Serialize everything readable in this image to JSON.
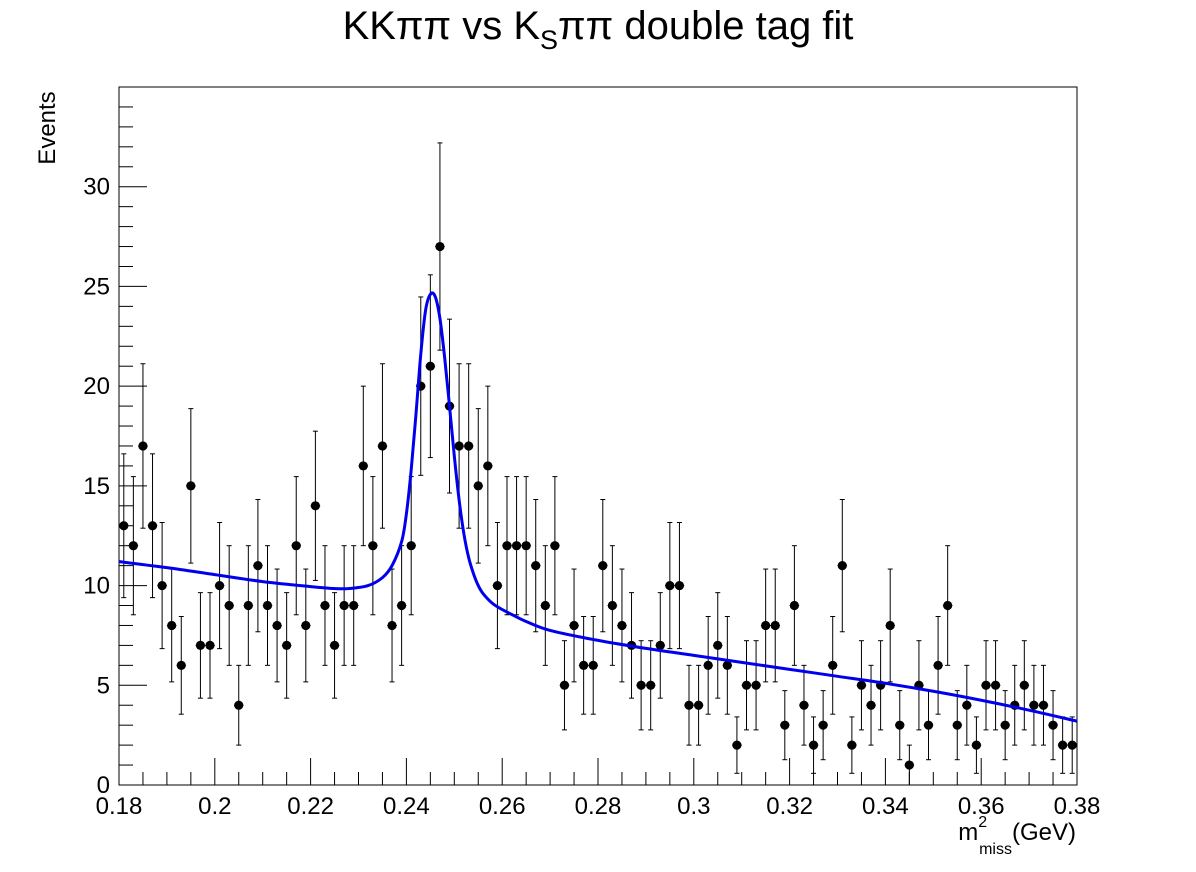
{
  "chart_data": {
    "type": "scatter",
    "title_main": "KKππ vs K",
    "title_sub": "S",
    "title_tail": "ππ double tag fit",
    "ylabel": "Events",
    "xlabel_m": "m",
    "xlabel_sup": "2",
    "xlabel_sub": "miss",
    "xlabel_unit": "(GeV)",
    "xlim": [
      0.18,
      0.38
    ],
    "ylim": [
      0,
      35
    ],
    "x_ticks": [
      "0.18",
      "0.2",
      "0.22",
      "0.24",
      "0.26",
      "0.28",
      "0.3",
      "0.32",
      "0.34",
      "0.36",
      "0.38"
    ],
    "y_ticks": [
      "0",
      "5",
      "10",
      "15",
      "20",
      "25",
      "30"
    ],
    "grid": false,
    "legend": "none",
    "bin_width": 0.002,
    "series": [
      {
        "style": "points-with-errorbars",
        "color": "#000000",
        "x": [
          0.181,
          0.183,
          0.185,
          0.187,
          0.189,
          0.191,
          0.193,
          0.195,
          0.197,
          0.199,
          0.201,
          0.203,
          0.205,
          0.207,
          0.209,
          0.211,
          0.213,
          0.215,
          0.217,
          0.219,
          0.221,
          0.223,
          0.225,
          0.227,
          0.229,
          0.231,
          0.233,
          0.235,
          0.237,
          0.239,
          0.241,
          0.243,
          0.245,
          0.247,
          0.249,
          0.251,
          0.253,
          0.255,
          0.257,
          0.259,
          0.261,
          0.263,
          0.265,
          0.267,
          0.269,
          0.271,
          0.273,
          0.275,
          0.277,
          0.279,
          0.281,
          0.283,
          0.285,
          0.287,
          0.289,
          0.291,
          0.293,
          0.295,
          0.297,
          0.299,
          0.301,
          0.303,
          0.305,
          0.307,
          0.309,
          0.311,
          0.313,
          0.315,
          0.317,
          0.319,
          0.321,
          0.323,
          0.325,
          0.327,
          0.329,
          0.331,
          0.333,
          0.335,
          0.337,
          0.339,
          0.341,
          0.343,
          0.345,
          0.347,
          0.349,
          0.351,
          0.353,
          0.355,
          0.357,
          0.359,
          0.361,
          0.363,
          0.365,
          0.367,
          0.369,
          0.371,
          0.373,
          0.375,
          0.377,
          0.379
        ],
        "y": [
          13,
          12,
          17,
          13,
          10,
          8,
          6,
          15,
          7,
          7,
          10,
          9,
          4,
          9,
          11,
          9,
          8,
          7,
          12,
          8,
          14,
          9,
          7,
          9,
          9,
          16,
          12,
          17,
          8,
          9,
          12,
          20,
          21,
          27,
          19,
          17,
          17,
          15,
          16,
          10,
          12,
          12,
          12,
          11,
          9,
          12,
          5,
          8,
          6,
          6,
          11,
          9,
          8,
          7,
          5,
          5,
          7,
          10,
          10,
          4,
          4,
          6,
          7,
          6,
          2,
          5,
          5,
          8,
          8,
          3,
          9,
          4,
          2,
          3,
          6,
          11,
          2,
          5,
          4,
          5,
          8,
          3,
          1,
          5,
          3,
          6,
          9,
          3,
          4,
          2,
          5,
          5,
          3,
          4,
          5,
          4,
          4,
          3,
          2,
          2
        ]
      },
      {
        "style": "line",
        "color": "#0000ee",
        "x": [
          0.18,
          0.19,
          0.2,
          0.21,
          0.22,
          0.225,
          0.228,
          0.232,
          0.235,
          0.237,
          0.239,
          0.24,
          0.241,
          0.242,
          0.243,
          0.244,
          0.245,
          0.246,
          0.247,
          0.248,
          0.249,
          0.25,
          0.251,
          0.252,
          0.253,
          0.254,
          0.255,
          0.256,
          0.258,
          0.26,
          0.262,
          0.265,
          0.27,
          0.28,
          0.29,
          0.3,
          0.31,
          0.32,
          0.33,
          0.34,
          0.35,
          0.36,
          0.37,
          0.38
        ],
        "y": [
          11.2,
          10.9,
          10.55,
          10.2,
          9.95,
          9.85,
          9.85,
          10.0,
          10.4,
          11.0,
          12.2,
          13.6,
          15.8,
          18.6,
          21.6,
          23.8,
          24.6,
          24.5,
          23.4,
          21.4,
          19.0,
          16.5,
          14.3,
          12.6,
          11.4,
          10.6,
          10.0,
          9.6,
          9.1,
          8.8,
          8.55,
          8.2,
          7.75,
          7.25,
          6.85,
          6.5,
          6.15,
          5.8,
          5.45,
          5.1,
          4.7,
          4.25,
          3.75,
          3.2
        ]
      }
    ]
  }
}
